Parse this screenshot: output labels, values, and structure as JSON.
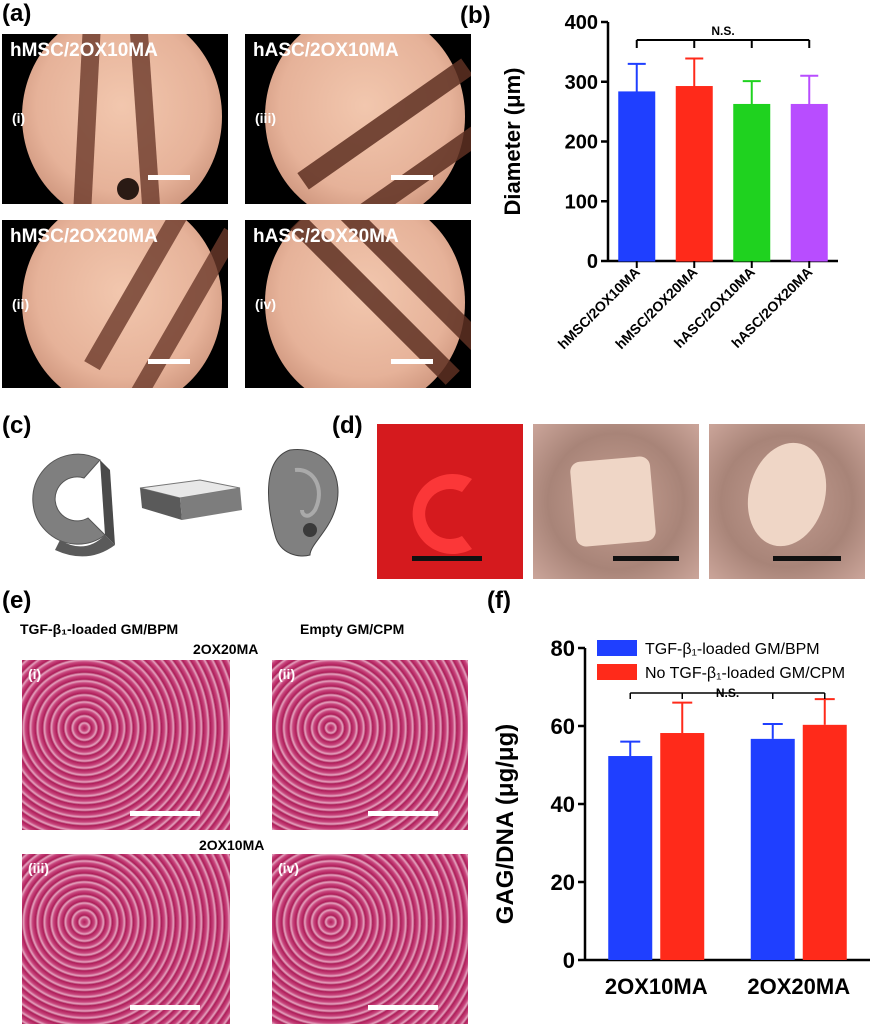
{
  "panels": {
    "a": "(a)",
    "b": "(b)",
    "c": "(c)",
    "d": "(d)",
    "e": "(e)",
    "f": "(f)"
  },
  "panel_a": {
    "images": [
      {
        "title": "hMSC/2OX10MA",
        "num": "(i)"
      },
      {
        "title": "hASC/2OX10MA",
        "num": "(iii)"
      },
      {
        "title": "hMSC/2OX20MA",
        "num": "(ii)"
      },
      {
        "title": "hASC/2OX20MA",
        "num": "(iv)"
      }
    ]
  },
  "panel_e": {
    "left_header": "TGF-β₁-loaded GM/BPM",
    "right_header": "Empty GM/CPM",
    "row1_label": "2OX20MA",
    "row2_label": "2OX10MA",
    "images": [
      {
        "num": "(i)"
      },
      {
        "num": "(ii)"
      },
      {
        "num": "(iii)"
      },
      {
        "num": "(iv)"
      }
    ]
  },
  "chart_data": [
    {
      "type": "bar",
      "title": "",
      "categories": [
        "hMSC/2OX10MA",
        "hMSC/2OX20MA",
        "hASC/2OX10MA",
        "hASC/2OX20MA"
      ],
      "values": [
        283,
        292,
        262,
        262
      ],
      "errors": [
        47,
        47,
        39,
        48
      ],
      "colors": [
        "#1f3fff",
        "#ff2a1a",
        "#1fd21f",
        "#b84dff"
      ],
      "xlabel": "",
      "ylabel": "Diameter (μm)",
      "ylim": [
        0,
        400
      ],
      "yticks": [
        "0",
        "100",
        "200",
        "300",
        "400"
      ],
      "annotation": "N.S."
    },
    {
      "type": "bar",
      "title": "",
      "categories": [
        "2OX10MA",
        "2OX20MA"
      ],
      "series": [
        {
          "name": "TGF-β₁-loaded GM/BPM",
          "values": [
            52.3,
            56.7
          ],
          "errors": [
            3.7,
            3.8
          ],
          "color": "#1f3fff"
        },
        {
          "name": "No TGF-β₁-loaded GM/CPM",
          "values": [
            58.2,
            60.3
          ],
          "errors": [
            7.8,
            6.6
          ],
          "color": "#ff2a1a"
        }
      ],
      "xlabel": "",
      "ylabel": "GAG/DNA (μg/μg)",
      "ylim": [
        0,
        80
      ],
      "yticks": [
        "0",
        "20",
        "40",
        "60",
        "80"
      ],
      "annotation": "N.S.",
      "legend": "top"
    }
  ]
}
